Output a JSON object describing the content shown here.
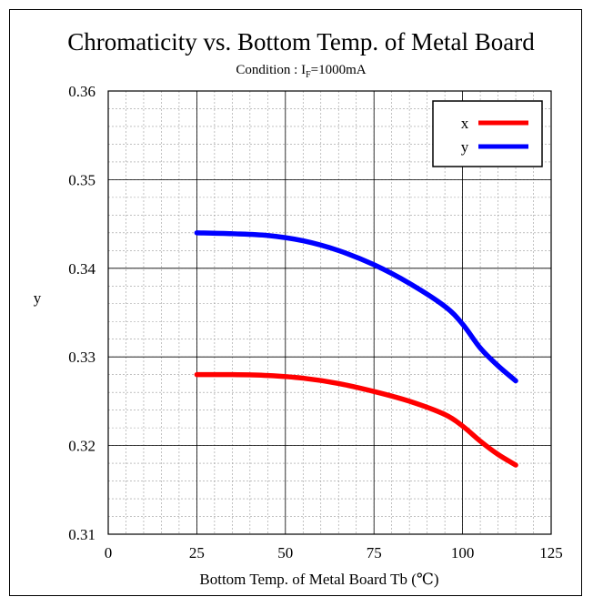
{
  "chart_data": {
    "type": "line",
    "title": "Chromaticity vs. Bottom Temp. of Metal Board",
    "subtitle": {
      "prefix": "Condition :  I",
      "subscript": "F",
      "suffix": "=1000mA"
    },
    "xlabel": "Bottom Temp. of Metal Board Tb (℃)",
    "ylabel": "y",
    "xlim": [
      0,
      125
    ],
    "ylim": [
      0.31,
      0.36
    ],
    "xticks": [
      0,
      25,
      50,
      75,
      100,
      125
    ],
    "xtick_labels": [
      "0",
      "25",
      "50",
      "75",
      "100",
      "125"
    ],
    "yticks": [
      0.31,
      0.32,
      0.33,
      0.34,
      0.35,
      0.36
    ],
    "ytick_labels": [
      "0.31",
      "0.32",
      "0.33",
      "0.34",
      "0.35",
      "0.36"
    ],
    "grid": true,
    "legend_position": "top-right",
    "series": [
      {
        "name": "x",
        "color": "#ff0000",
        "x": [
          25,
          35,
          45,
          55,
          65,
          75,
          85,
          95,
          100,
          105,
          110,
          115
        ],
        "y": [
          0.328,
          0.328,
          0.3279,
          0.3276,
          0.327,
          0.3261,
          0.325,
          0.3235,
          0.3222,
          0.3205,
          0.319,
          0.3178
        ]
      },
      {
        "name": "y",
        "color": "#0000ff",
        "x": [
          25,
          35,
          45,
          55,
          65,
          75,
          85,
          95,
          100,
          105,
          110,
          115
        ],
        "y": [
          0.344,
          0.3439,
          0.3437,
          0.3431,
          0.342,
          0.3404,
          0.3383,
          0.3357,
          0.3337,
          0.331,
          0.329,
          0.3273
        ]
      }
    ]
  }
}
